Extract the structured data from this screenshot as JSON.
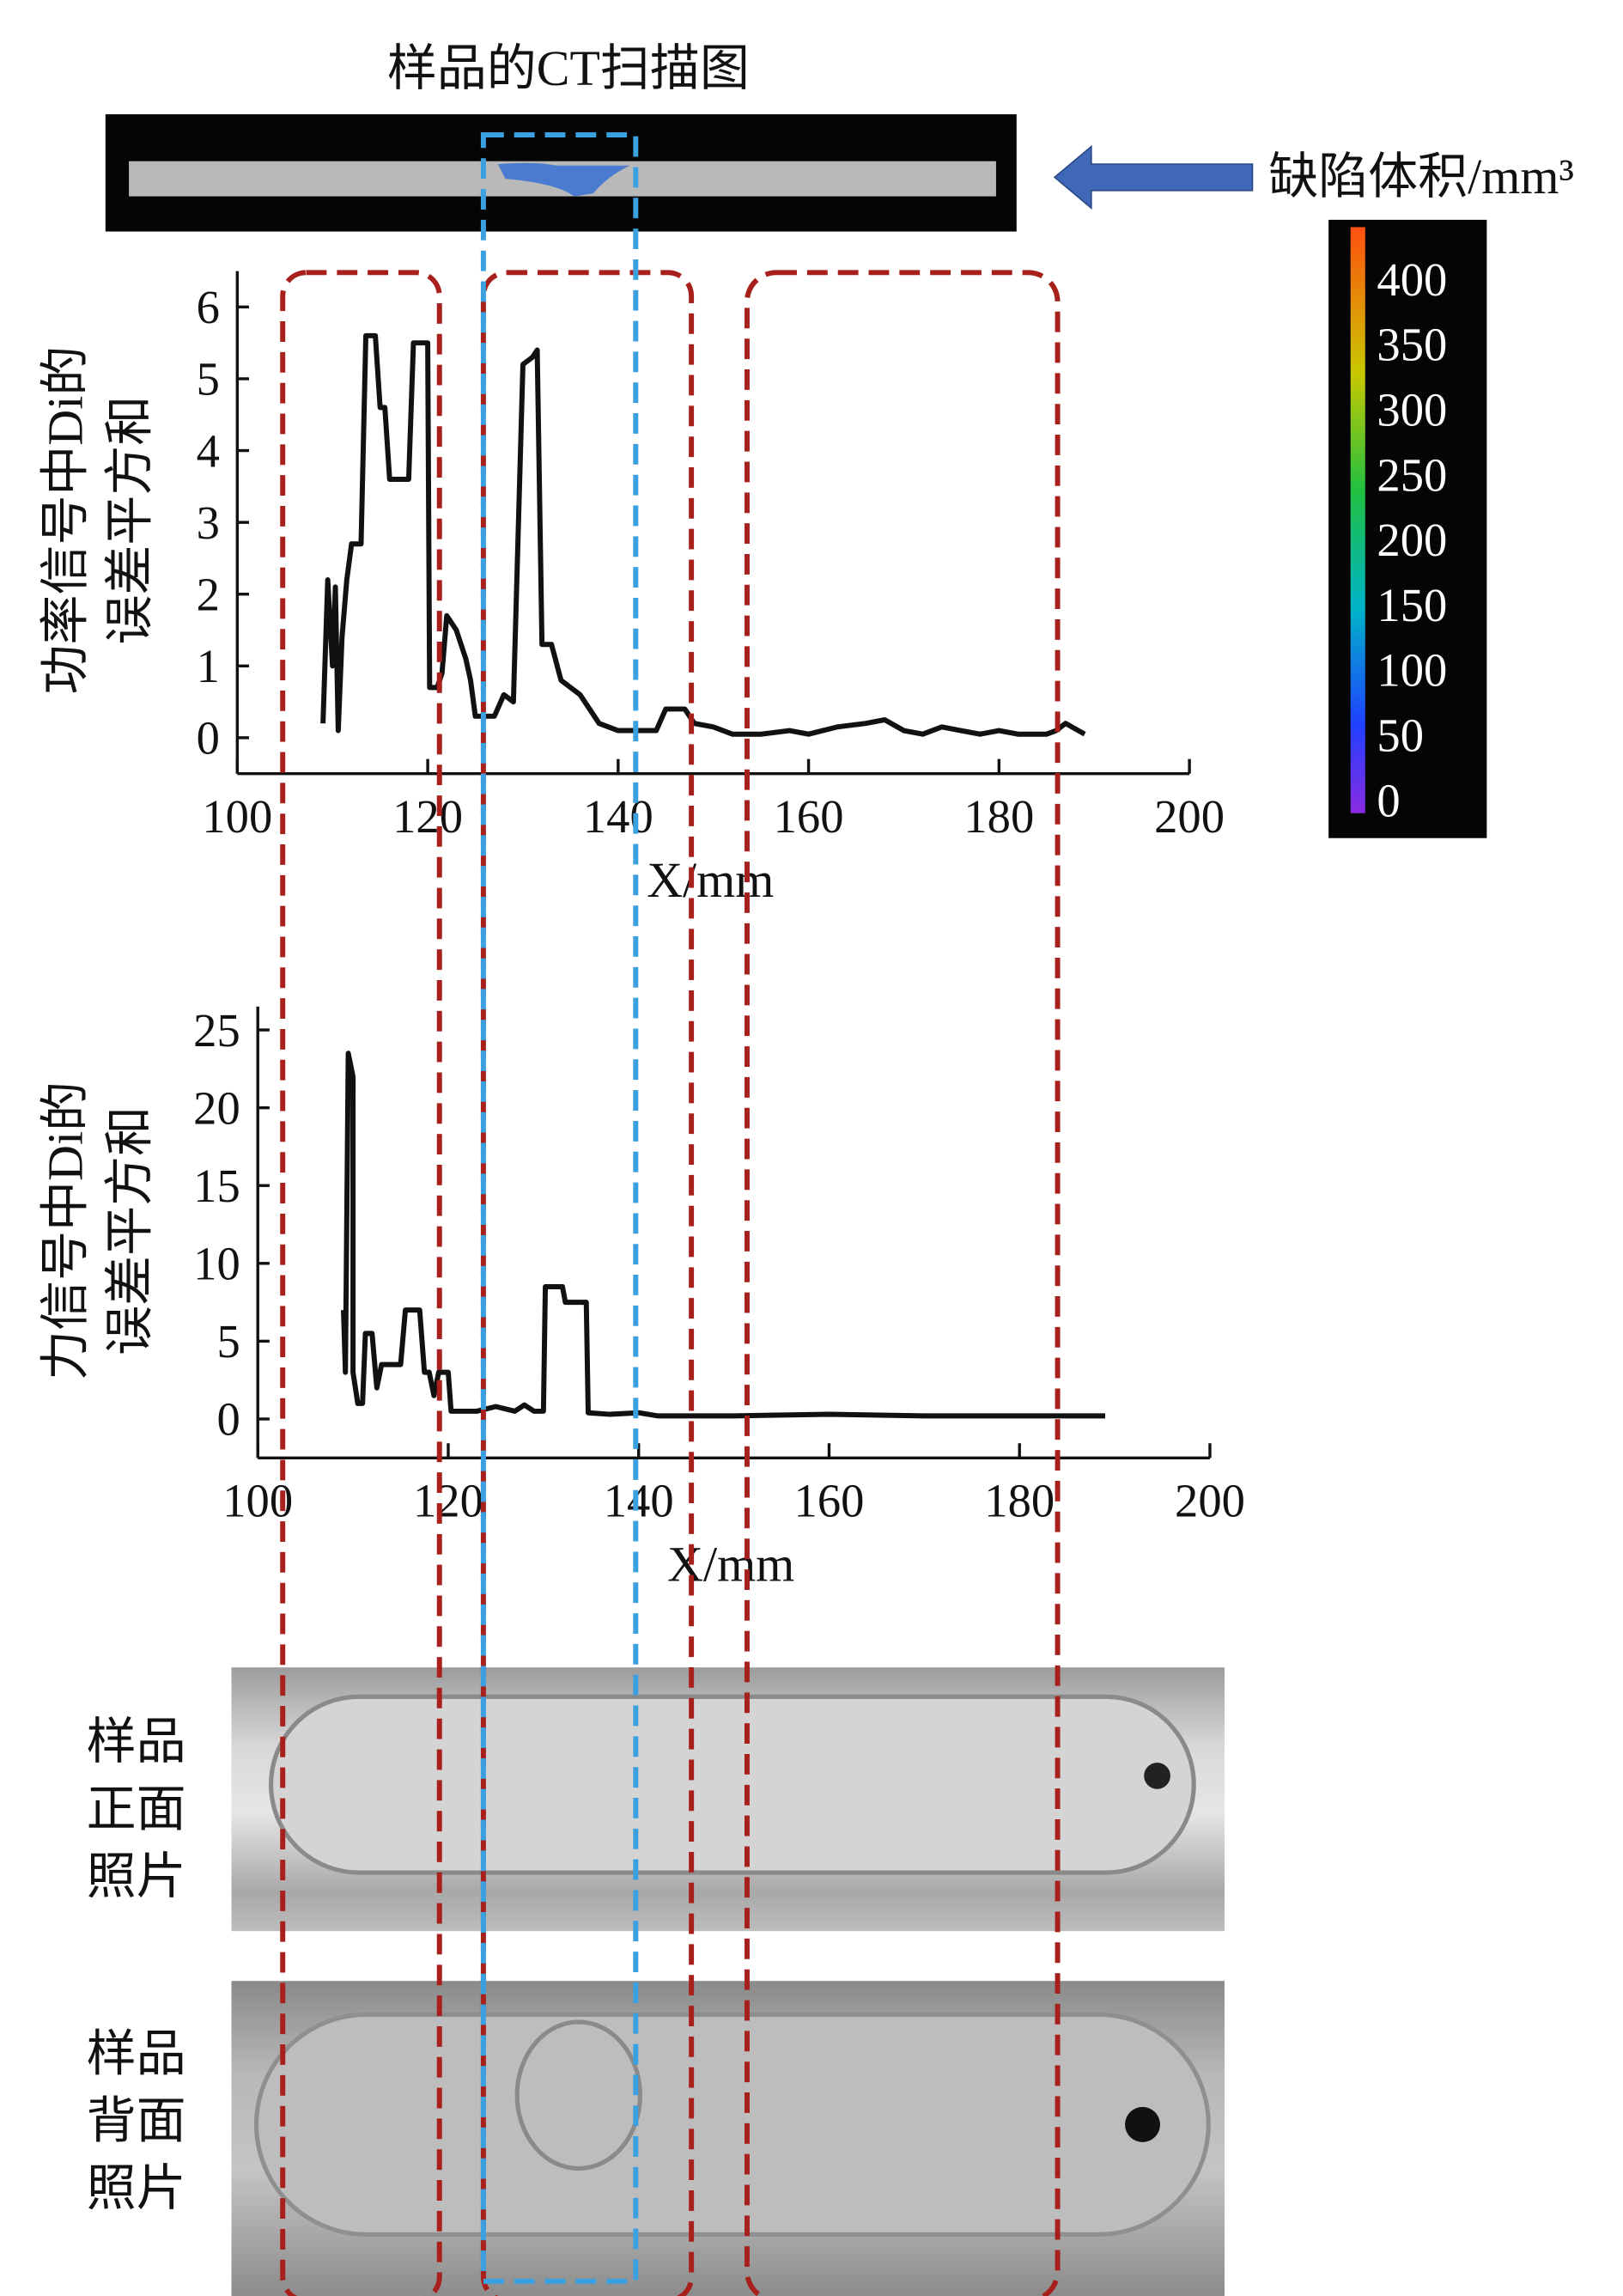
{
  "ct": {
    "title": "样品的CT扫描图",
    "colorbar_label": "缺陷体积/mm³",
    "clim": [
      -10,
      440
    ],
    "cticks": [
      0,
      50,
      100,
      150,
      200,
      250,
      300,
      350,
      400
    ]
  },
  "photos": [
    {
      "label_lines": [
        "样品",
        "正面",
        "照片"
      ]
    },
    {
      "label_lines": [
        "样品",
        "背面",
        "照片"
      ]
    }
  ],
  "chart_data": [
    {
      "type": "line",
      "xlabel": "X/mm",
      "ylabel_lines": [
        "功率信号中Di的",
        "误差平方和"
      ],
      "color": "#111111",
      "xlim": [
        100,
        200
      ],
      "xticks": [
        100,
        120,
        140,
        160,
        180,
        200
      ],
      "ylim": [
        -0.5,
        6.5
      ],
      "yticks": [
        0,
        1,
        2,
        3,
        4,
        5,
        6
      ],
      "x": [
        109,
        109.5,
        110,
        110.3,
        110.6,
        111,
        111.5,
        112,
        113,
        113.5,
        114.5,
        115,
        115.5,
        116,
        118,
        118.5,
        120,
        120.2,
        121,
        121.5,
        122,
        123,
        124,
        124.5,
        125,
        127,
        128,
        129,
        130,
        131,
        131.5,
        132,
        133,
        134,
        136,
        138,
        140,
        142,
        144,
        145,
        147,
        148,
        150,
        152,
        155,
        158,
        160,
        163,
        166,
        168,
        170,
        172,
        174,
        176,
        178,
        180,
        182,
        185,
        186,
        187,
        189
      ],
      "values": [
        0.2,
        2.2,
        1.0,
        2.1,
        0.1,
        1.4,
        2.2,
        2.7,
        2.7,
        5.6,
        5.6,
        4.6,
        4.6,
        3.6,
        3.6,
        5.5,
        5.5,
        0.7,
        0.7,
        0.9,
        1.7,
        1.5,
        1.1,
        0.8,
        0.3,
        0.3,
        0.6,
        0.5,
        5.2,
        5.3,
        5.4,
        1.3,
        1.3,
        0.8,
        0.6,
        0.2,
        0.1,
        0.1,
        0.1,
        0.4,
        0.4,
        0.2,
        0.15,
        0.05,
        0.05,
        0.1,
        0.05,
        0.15,
        0.2,
        0.25,
        0.1,
        0.05,
        0.15,
        0.1,
        0.05,
        0.1,
        0.05,
        0.05,
        0.1,
        0.2,
        0.05
      ]
    },
    {
      "type": "line",
      "xlabel": "X/mm",
      "ylabel_lines": [
        "力信号中Di的",
        "误差平方和"
      ],
      "color": "#111111",
      "xlim": [
        100,
        200
      ],
      "xticks": [
        100,
        120,
        140,
        160,
        180,
        200
      ],
      "ylim": [
        -2.5,
        26.5
      ],
      "yticks": [
        0,
        5,
        10,
        15,
        20,
        25
      ],
      "x": [
        109,
        109.2,
        109.5,
        110,
        110,
        110.5,
        111,
        111.3,
        112,
        112.5,
        113,
        115,
        115.5,
        117,
        117.5,
        118,
        118.5,
        119,
        120,
        120.3,
        123,
        125,
        127,
        128,
        129,
        130,
        130.2,
        132,
        132.3,
        134.5,
        134.7,
        137,
        140,
        142,
        150,
        160,
        170,
        180,
        189
      ],
      "values": [
        7,
        3,
        23.5,
        22,
        3,
        1,
        1,
        5.5,
        5.5,
        2,
        3.5,
        3.5,
        7,
        7,
        3,
        3,
        1.5,
        3,
        3,
        0.5,
        0.5,
        0.8,
        0.5,
        0.9,
        0.5,
        0.5,
        8.5,
        8.5,
        7.5,
        7.5,
        0.4,
        0.3,
        0.4,
        0.2,
        0.2,
        0.3,
        0.2,
        0.2,
        0.2
      ]
    }
  ]
}
